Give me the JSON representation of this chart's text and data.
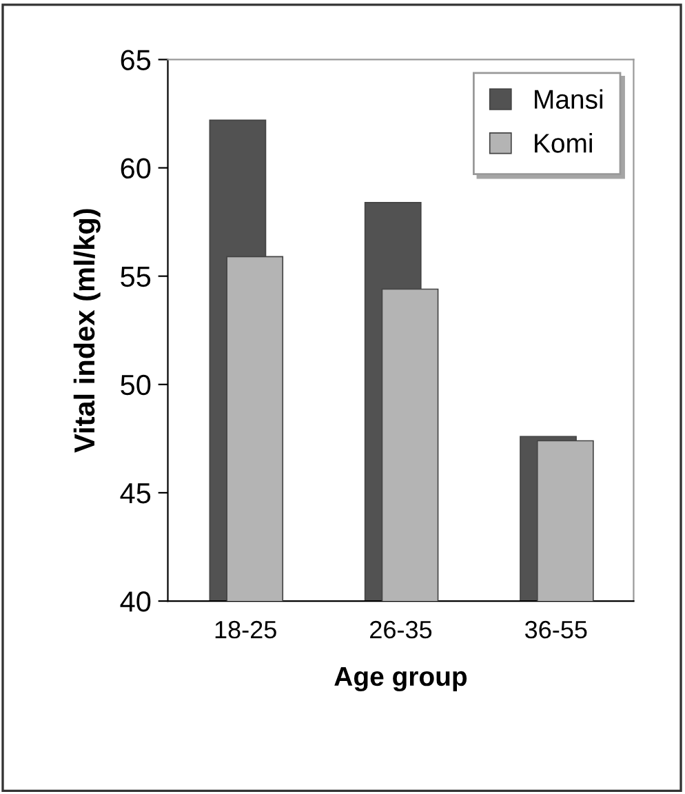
{
  "chart_data": {
    "type": "bar",
    "xlabel": "Age group",
    "ylabel": "Vital index (ml/kg)",
    "categories": [
      "18-25",
      "26-35",
      "36-55"
    ],
    "series": [
      {
        "name": "Mansi",
        "color": "#525252",
        "values": [
          62.2,
          58.4,
          47.6
        ]
      },
      {
        "name": "Komi",
        "color": "#b4b4b4",
        "values": [
          55.9,
          54.4,
          47.4
        ]
      }
    ],
    "ylim": [
      40,
      65
    ],
    "yticks": [
      40,
      45,
      50,
      55,
      60,
      65
    ],
    "grid": false,
    "legend": "top right"
  }
}
